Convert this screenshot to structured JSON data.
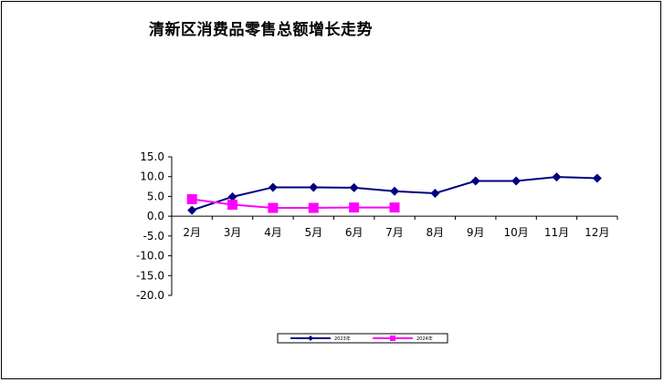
{
  "chart_data": {
    "type": "line",
    "title": "清新区消费品零售总额增长走势",
    "categories": [
      "2月",
      "3月",
      "4月",
      "5月",
      "6月",
      "7月",
      "8月",
      "9月",
      "10月",
      "11月",
      "12月"
    ],
    "ylim": [
      -20.0,
      15.0
    ],
    "yticks": [
      "15.0",
      "10.0",
      "5.0",
      "0.0",
      "-5.0",
      "-10.0",
      "-15.0",
      "-20.0"
    ],
    "ytick_values": [
      15,
      10,
      5,
      0,
      -5,
      -10,
      -15,
      -20
    ],
    "grid": false,
    "legend_position": "bottom",
    "series": [
      {
        "name": "2023年",
        "color": "#000080",
        "marker": "diamond",
        "values": [
          1.5,
          4.9,
          7.3,
          7.3,
          7.2,
          6.3,
          5.8,
          8.9,
          8.9,
          9.9,
          9.6
        ]
      },
      {
        "name": "2024年",
        "color": "#FF00FF",
        "marker": "square",
        "values": [
          4.3,
          2.9,
          2.1,
          2.1,
          2.2,
          2.2,
          null,
          null,
          null,
          null,
          null
        ]
      }
    ]
  }
}
